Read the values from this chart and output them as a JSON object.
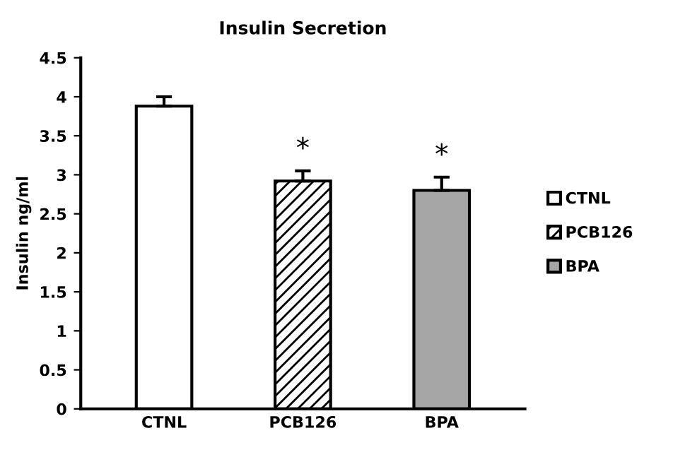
{
  "chart_data": {
    "type": "bar",
    "title": "Insulin Secretion",
    "ylabel": "Insulin ng/ml",
    "categories": [
      "CTNL",
      "PCB126",
      "BPA"
    ],
    "series": [
      {
        "name": "CTNL",
        "color": "#ffffff",
        "values": [
          3.88,
          null,
          null
        ],
        "errors": [
          0.12,
          null,
          null
        ]
      },
      {
        "name": "PCB126",
        "color": "#000000",
        "values": [
          null,
          2.92,
          null
        ],
        "errors": [
          null,
          0.13,
          null
        ]
      },
      {
        "name": "BPA",
        "color": "#a6a6a6",
        "values": [
          null,
          null,
          2.8
        ],
        "errors": [
          null,
          null,
          0.17
        ]
      }
    ],
    "ylim": [
      0,
      4.5
    ],
    "yticks": [
      0,
      0.5,
      1,
      1.5,
      2,
      2.5,
      3,
      3.5,
      4,
      4.5
    ],
    "annotations": [
      "*",
      "*"
    ],
    "grid": false,
    "legend": "right"
  }
}
